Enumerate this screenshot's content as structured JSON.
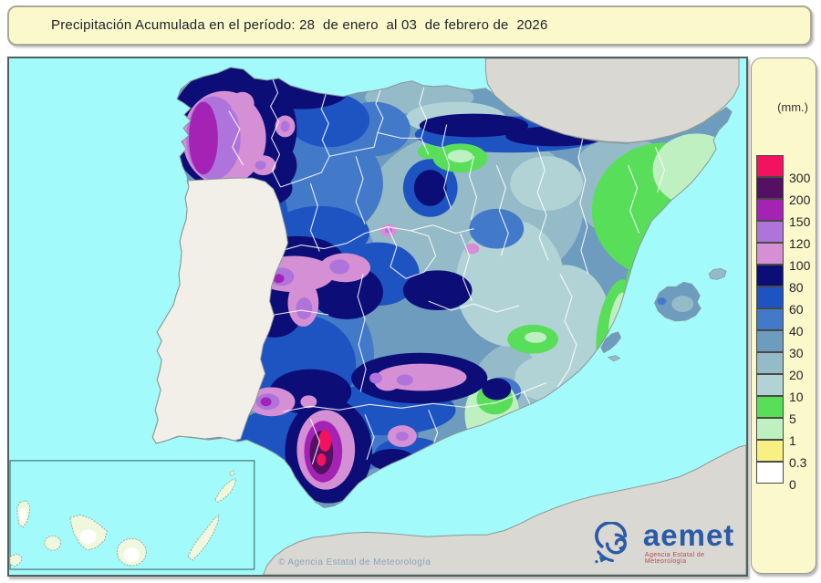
{
  "title": {
    "text": "Precipitación Acumulada en el período: 28  de enero  al 03  de febrero de  2026"
  },
  "map": {
    "copyright": "© Agencia Estatal de Meteorología",
    "logo": {
      "wordmark": "aemet",
      "tagline": "Agencia Estatal de Meteorología"
    }
  },
  "legend": {
    "unit_label": "(mm.)",
    "entries": [
      {
        "value": "300",
        "color": "#F2125F"
      },
      {
        "value": "200",
        "color": "#541164"
      },
      {
        "value": "150",
        "color": "#A423B4"
      },
      {
        "value": "120",
        "color": "#AE74DC"
      },
      {
        "value": "100",
        "color": "#D58FD5"
      },
      {
        "value": "80",
        "color": "#0D0D78"
      },
      {
        "value": "60",
        "color": "#1E54C2"
      },
      {
        "value": "40",
        "color": "#4379C9"
      },
      {
        "value": "30",
        "color": "#6E9CBE"
      },
      {
        "value": "20",
        "color": "#95BAC8"
      },
      {
        "value": "10",
        "color": "#B2D3D6"
      },
      {
        "value": "5",
        "color": "#59DE59"
      },
      {
        "value": "1",
        "color": "#BFF0C2"
      },
      {
        "value": "0.3",
        "color": "#F9F084"
      },
      {
        "value": "0",
        "color": "#FFFFFF"
      }
    ]
  },
  "palette": {
    "sea": "#A3FAFA",
    "foreign": "#D9D8D3",
    "portugal": "#F2EFE9",
    "panel": "#FBF9CC",
    "coast": "#8A9896",
    "inset": "#4A8080",
    "canary": "#EFF8DC",
    "c300": "#F2125F",
    "c200": "#541164",
    "c150": "#A423B4",
    "c120": "#AE74DC",
    "c100": "#D58FD5",
    "c80": "#0D0D78",
    "c60": "#1E54C2",
    "c40": "#4379C9",
    "c30": "#6E9CBE",
    "c20": "#95BAC8",
    "c10": "#B2D3D6",
    "c5": "#59DE59",
    "c1": "#BFF0C2",
    "c03": "#F9F084",
    "c0": "#FFFFFF",
    "logo_blue": "#2B5AA6",
    "logo_red": "#BC4A4A"
  }
}
